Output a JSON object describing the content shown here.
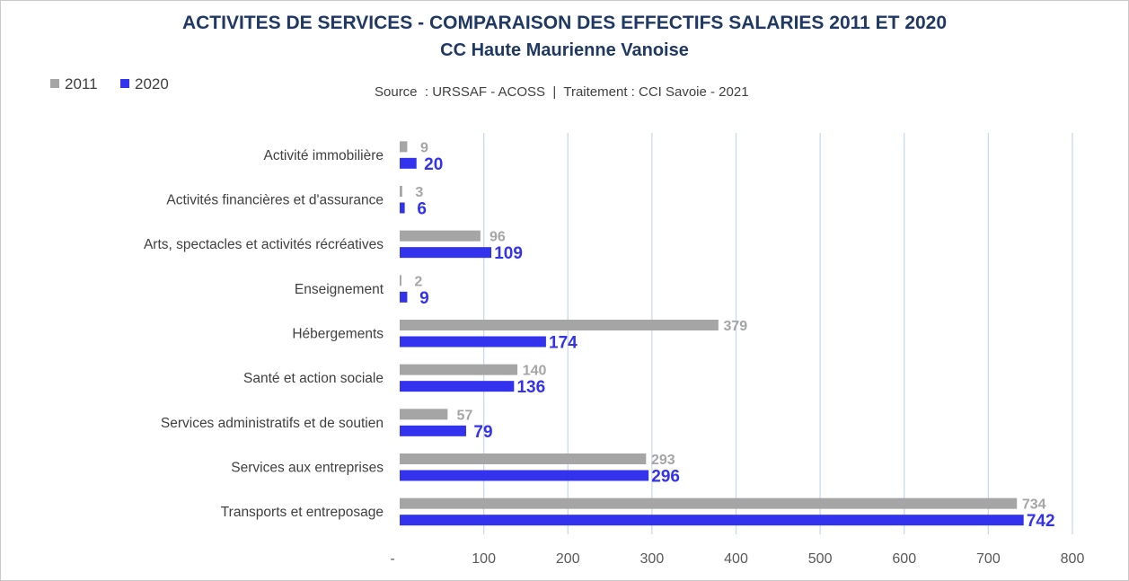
{
  "chart_data": {
    "type": "bar",
    "orientation": "horizontal",
    "title": "ACTIVITES DE SERVICES - COMPARAISON DES EFFECTIFS SALARIES 2011 ET 2020",
    "subtitle": "CC Haute Maurienne Vanoise",
    "source": "Source  : URSSAF - ACOSS  |  Traitement : CCI Savoie - 2021",
    "categories": [
      "Activité immobilière",
      "Activités financières et d'assurance",
      "Arts, spectacles et activités récréatives",
      "Enseignement",
      "Hébergements",
      "Santé et action sociale",
      "Services administratifs et de soutien",
      "Services aux entreprises",
      "Transports et entreposage"
    ],
    "series": [
      {
        "name": "2011",
        "color": "#a5a5a5",
        "values": [
          9,
          3,
          96,
          2,
          379,
          140,
          57,
          293,
          734
        ]
      },
      {
        "name": "2020",
        "color": "#3333ee",
        "values": [
          20,
          6,
          109,
          9,
          174,
          136,
          79,
          296,
          742
        ]
      }
    ],
    "xlim": [
      0,
      800
    ],
    "x_ticks": [
      {
        "value": 0,
        "label": "-"
      },
      {
        "value": 100,
        "label": "100"
      },
      {
        "value": 200,
        "label": "200"
      },
      {
        "value": 300,
        "label": "300"
      },
      {
        "value": 400,
        "label": "400"
      },
      {
        "value": 500,
        "label": "500"
      },
      {
        "value": 600,
        "label": "600"
      },
      {
        "value": 700,
        "label": "700"
      },
      {
        "value": 800,
        "label": "800"
      }
    ],
    "grid": true,
    "legend_position": "top-left",
    "xlabel": "",
    "ylabel": ""
  }
}
